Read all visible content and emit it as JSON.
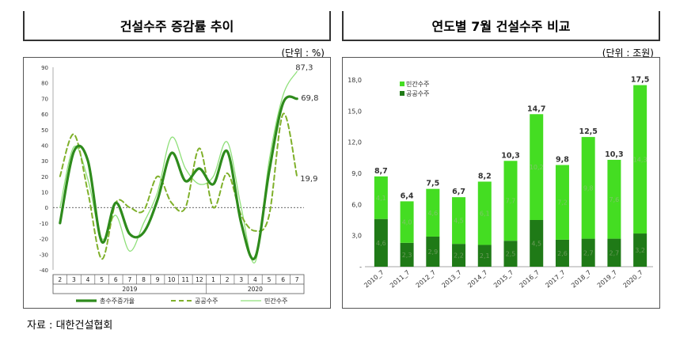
{
  "left_panel": {
    "title": "건설수주 증감률 추이",
    "unit": "(단위 : %)"
  },
  "right_panel": {
    "title": "연도별 7월 건설수주 비교",
    "unit": "(단위 : 조원)"
  },
  "source": "자료 : 대한건설협회",
  "colors": {
    "total": "#2e8b1c",
    "public": "#7fb02a",
    "private": "#8fe07a",
    "bar_private": "#44dd22",
    "bar_public": "#1f7a17"
  },
  "chart_data": [
    {
      "type": "line",
      "x": [
        "2",
        "3",
        "4",
        "5",
        "6",
        "7",
        "8",
        "9",
        "10",
        "11",
        "12",
        "1",
        "2",
        "3",
        "4",
        "5",
        "6",
        "7"
      ],
      "x_groups": [
        {
          "label": "2019",
          "from": 0,
          "to": 10
        },
        {
          "label": "2020",
          "from": 11,
          "to": 17
        }
      ],
      "ylim": [
        -40,
        90
      ],
      "yticks": [
        -40,
        -30,
        -20,
        -10,
        0,
        10,
        20,
        30,
        40,
        50,
        60,
        70,
        80,
        90
      ],
      "series": [
        {
          "name": "총수주증가율",
          "style": "solid-thick",
          "values": [
            -10,
            36,
            30,
            -22,
            3,
            -17,
            -16,
            5,
            35,
            17,
            25,
            15,
            36,
            -10,
            -32,
            23,
            67,
            69.8
          ]
        },
        {
          "name": "공공수주",
          "style": "dashed",
          "values": [
            20,
            47,
            10,
            -33,
            3,
            0,
            -2,
            20,
            3,
            0,
            38,
            0,
            22,
            -5,
            -15,
            -5,
            60,
            19.9
          ]
        },
        {
          "name": "민간수주",
          "style": "solid-thin",
          "values": [
            0,
            39,
            18,
            -20,
            -5,
            -28,
            -10,
            10,
            45,
            25,
            15,
            20,
            42,
            0,
            -35,
            30,
            72,
            87.3
          ]
        }
      ],
      "end_labels": [
        "69,8",
        "19,9",
        "87,3"
      ]
    },
    {
      "type": "bar",
      "stacked": true,
      "categories": [
        "2010_7",
        "2011_7",
        "2012_7",
        "2013_7",
        "2014_7",
        "2015_7",
        "2016_7",
        "2017_7",
        "2018_7",
        "2019_7",
        "2020_7"
      ],
      "ylim": [
        0,
        18
      ],
      "yticks": [
        "18,0",
        "15,0",
        "12,0",
        "9,0",
        "6,0",
        "3,0",
        "-"
      ],
      "series": [
        {
          "name": "공공수주",
          "values": [
            4.6,
            2.3,
            2.9,
            2.2,
            2.1,
            2.5,
            4.5,
            2.6,
            2.7,
            2.7,
            3.2
          ],
          "labels": [
            "4,6",
            "2,3",
            "2,9",
            "2,2",
            "2,1",
            "2,5",
            "4,5",
            "2,6",
            "2,7",
            "2,7",
            "3,2"
          ]
        },
        {
          "name": "민간수주",
          "values": [
            4.1,
            4.0,
            4.6,
            4.5,
            6.1,
            7.7,
            10.2,
            7.2,
            9.8,
            7.6,
            14.3
          ],
          "labels": [
            "4,1",
            "4,0",
            "4,6",
            "4,5",
            "6,1",
            "7,7",
            "10,2",
            "7,2",
            "9,8",
            "7,6",
            "14,3"
          ]
        }
      ],
      "totals": [
        "8,7",
        "6,4",
        "7,5",
        "6,7",
        "8,2",
        "10,3",
        "14,7",
        "9,8",
        "12,5",
        "10,3",
        "17,5"
      ],
      "legend": [
        "민간수주",
        "공공수주"
      ]
    }
  ]
}
